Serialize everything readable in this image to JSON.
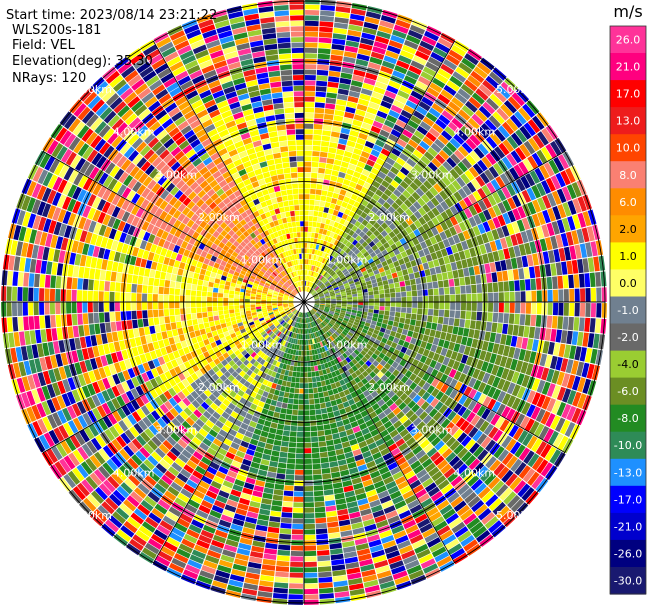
{
  "chart_data": {
    "type": "heatmap",
    "plot_kind": "ppi-polar",
    "info": {
      "start_time": "Start time: 2023/08/14 23:21:22",
      "instrument": "WLS200s-181",
      "field": "Field: VEL",
      "elevation": "Elevation(deg): 35.30",
      "nrays": "NRays: 120"
    },
    "range_rings_km": [
      1.0,
      2.0,
      3.0,
      4.0,
      5.0
    ],
    "ring_labels": [
      "1.00km",
      "2.00km",
      "3.00km",
      "4.00km",
      "5.00km"
    ],
    "max_range_km": 5.0,
    "n_rays": 120,
    "colorbar": {
      "unit": "m/s",
      "vmin": -30.0,
      "vmax": 30.0,
      "tick_labels": [
        "26.0",
        "21.0",
        "17.0",
        "13.0",
        "10.0",
        "8.0",
        "6.0",
        "2.0",
        "1.0",
        "0.0",
        "-1.0",
        "-2.0",
        "-4.0",
        "-6.0",
        "-8.0",
        "-10.0",
        "-13.0",
        "-17.0",
        "-21.0",
        "-26.0",
        "-30.0"
      ],
      "colors": [
        "#ff3399",
        "#ff007f",
        "#ff0000",
        "#ee1c1c",
        "#ff4500",
        "#fa8072",
        "#ff8c00",
        "#ffa500",
        "#ffff00",
        "#ffff66",
        "#708090",
        "#696969",
        "#9acd32",
        "#6b8e23",
        "#228b22",
        "#2e8b57",
        "#1e90ff",
        "#0000ff",
        "#0000cd",
        "#000080",
        "#191970"
      ]
    },
    "pattern": {
      "inner_regions": [
        {
          "quadrant": "north",
          "values": [
            1.0,
            2.0
          ],
          "color": "#ffff00"
        },
        {
          "quadrant": "northwest",
          "values": [
            6.0,
            8.0
          ],
          "color": "#fa8072"
        },
        {
          "quadrant": "west",
          "values": [
            2.0,
            6.0
          ],
          "color": "#ffa500"
        },
        {
          "quadrant": "east",
          "values": [
            -2.0,
            -4.0
          ],
          "color": "#6b8e23"
        },
        {
          "quadrant": "south",
          "values": [
            -6.0,
            -8.0
          ],
          "color": "#228b22"
        }
      ],
      "noise_start_km": [
        2.4,
        4.0
      ]
    }
  }
}
